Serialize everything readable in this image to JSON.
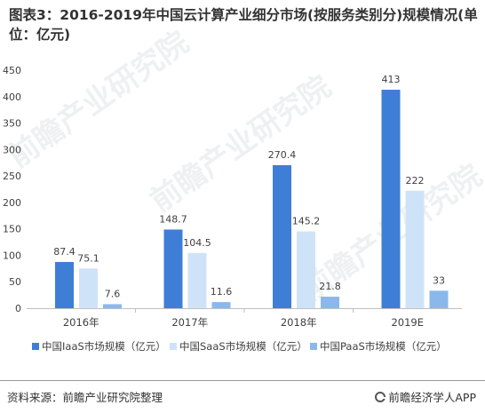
{
  "title": "图表3：2016-2019年中国云计算产业细分市场(按服务类别分)规模情况(单位：亿元)",
  "source": "资料来源：前瞻产业研究院整理",
  "brand": "前瞻经济学人APP",
  "watermark": "前瞻产业研究院",
  "colors": {
    "iaas": "#3f7ed6",
    "saas": "#cfe3f8",
    "paas": "#8ab8ec",
    "axis": "#bfbfbf",
    "grid": "#e6e6e6",
    "text": "#404040"
  },
  "chart_data": {
    "type": "bar",
    "categories": [
      "2016年",
      "2017年",
      "2018年",
      "2019E"
    ],
    "series": [
      {
        "name": "中国IaaS市场规模（亿元）",
        "values": [
          87.4,
          148.7,
          270.4,
          413
        ],
        "labels": [
          "87.4",
          "148.7",
          "270.4",
          "413"
        ]
      },
      {
        "name": "中国SaaS市场规模（亿元）",
        "values": [
          75.1,
          104.5,
          145.2,
          222
        ],
        "labels": [
          "75.1",
          "104.5",
          "145.2",
          "222"
        ]
      },
      {
        "name": "中国PaaS市场规模（亿元）",
        "values": [
          7.6,
          11.6,
          21.8,
          33
        ],
        "labels": [
          "7.6",
          "11.6",
          "21.8",
          "33"
        ]
      }
    ],
    "ylim": [
      0,
      450
    ],
    "yticks": [
      "0",
      "50",
      "100",
      "150",
      "200",
      "250",
      "300",
      "350",
      "400",
      "450"
    ],
    "legend": "bottom",
    "grid": false
  }
}
